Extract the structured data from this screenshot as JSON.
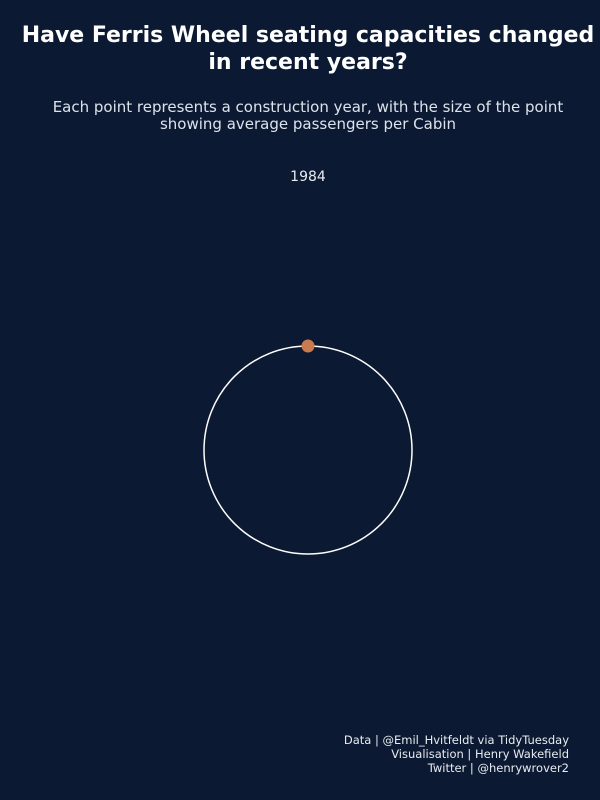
{
  "header": {
    "title_line1": "Have Ferris Wheel seating capacities changed",
    "title_line2": "in recent years?",
    "subtitle_line1": "Each point represents a construction year, with the size of the point",
    "subtitle_line2": "showing average passengers per Cabin",
    "frame_label": "1984"
  },
  "caption": {
    "line1": "Data | @Emil_Hvitfeldt via TidyTuesday",
    "line2": "Visualisation | Henry Wakefield",
    "line3": "Twitter | @henrywrover2"
  },
  "colors": {
    "background": "#0b1932",
    "ring": "#ffffff",
    "point": "#c97b4e"
  },
  "chart_data": {
    "type": "scatter",
    "title": "Have Ferris Wheel seating capacities changed in recent years?",
    "subtitle": "Each point represents a construction year, with the size of the point showing average passengers per Cabin",
    "frame": "1984",
    "points": [
      {
        "year": "1984",
        "angle_deg": 90
      }
    ]
  }
}
